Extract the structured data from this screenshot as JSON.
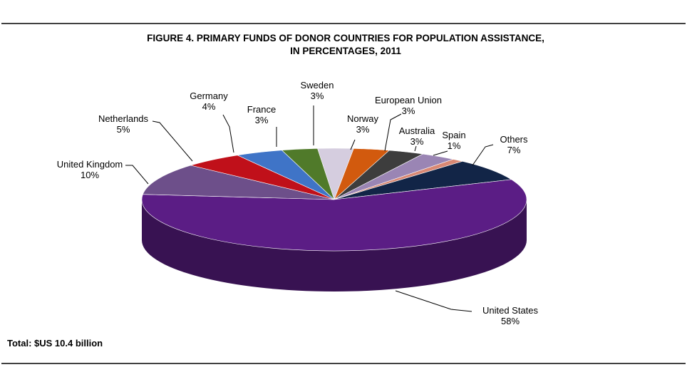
{
  "chart_data": {
    "type": "pie",
    "title_lines": [
      "FIGURE 4. PRIMARY FUNDS OF DONOR COUNTRIES FOR POPULATION ASSISTANCE,",
      "IN PERCENTAGES, 2011"
    ],
    "footnote": "Total: $US 10.4 billion",
    "slices": [
      {
        "label": "Sweden",
        "pct_text": "3%",
        "value": 3,
        "color": "#D5CDDF"
      },
      {
        "label": "Norway",
        "pct_text": "3%",
        "value": 3,
        "color": "#D25A0E"
      },
      {
        "label": "European Union",
        "pct_text": "3%",
        "value": 3,
        "color": "#3D3D3D"
      },
      {
        "label": "Australia",
        "pct_text": "3%",
        "value": 3,
        "color": "#9A85B4"
      },
      {
        "label": "Spain",
        "pct_text": "1%",
        "value": 1,
        "color": "#D98874"
      },
      {
        "label": "Others",
        "pct_text": "7%",
        "value": 7,
        "color": "#122547"
      },
      {
        "label": "United States",
        "pct_text": "58%",
        "value": 58,
        "color": "#5B1D85"
      },
      {
        "label": "United Kingdom",
        "pct_text": "10%",
        "value": 10,
        "color": "#6D4F8A"
      },
      {
        "label": "Netherlands",
        "pct_text": "5%",
        "value": 5,
        "color": "#C0101A"
      },
      {
        "label": "Germany",
        "pct_text": "4%",
        "value": 4,
        "color": "#3F74C7"
      },
      {
        "label": "France",
        "pct_text": "3%",
        "value": 3,
        "color": "#507A2A"
      }
    ]
  }
}
